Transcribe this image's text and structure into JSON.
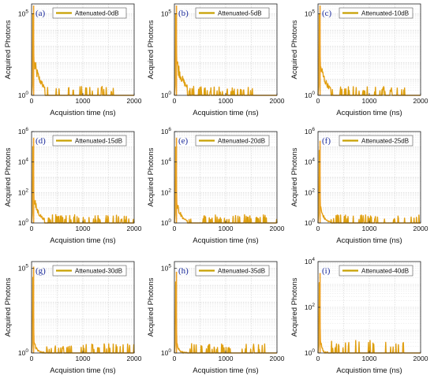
{
  "chart_data": {
    "type": "line",
    "layout": "3x3 grid",
    "line_color": "#c8a000",
    "fill_color": "#f0a020",
    "x_ticks": [
      "0",
      "1000",
      "2000"
    ],
    "xlim": [
      0,
      2000
    ],
    "x_label": "Acquistion time (ns)",
    "y_label": "Acquired Photons",
    "y_scale": "log",
    "grid": true,
    "legend_placement": "top",
    "panels": [
      {
        "letter": "(a)",
        "legend": "Attenuated-0dB",
        "y_ticks": [
          {
            "base": "10",
            "exp": "5"
          },
          {
            "base": "10",
            "exp": "0"
          }
        ],
        "ylim_log": [
          0,
          5.6
        ],
        "peak_log": 5.5,
        "tail_decay_ns": 150,
        "tail_start_log": 1.9,
        "noise_end_ns": 1600
      },
      {
        "letter": "(b)",
        "legend": "Attenuated-5dB",
        "y_ticks": [
          {
            "base": "10",
            "exp": "5"
          },
          {
            "base": "10",
            "exp": "0"
          }
        ],
        "ylim_log": [
          0,
          5.6
        ],
        "peak_log": 5.5,
        "tail_decay_ns": 150,
        "tail_start_log": 1.9,
        "noise_end_ns": 1600
      },
      {
        "letter": "(c)",
        "legend": "Attenuated-10dB",
        "y_ticks": [
          {
            "base": "10",
            "exp": "5"
          },
          {
            "base": "10",
            "exp": "0"
          }
        ],
        "ylim_log": [
          0,
          5.6
        ],
        "peak_log": 5.5,
        "tail_decay_ns": 130,
        "tail_start_log": 1.7,
        "noise_end_ns": 1700
      },
      {
        "letter": "(d)",
        "legend": "Attenuated-15dB",
        "y_ticks": [
          {
            "base": "10",
            "exp": "6"
          },
          {
            "base": "10",
            "exp": "4"
          },
          {
            "base": "10",
            "exp": "2"
          },
          {
            "base": "10",
            "exp": "0"
          }
        ],
        "ylim_log": [
          0,
          6
        ],
        "peak_log": 5.6,
        "tail_decay_ns": 110,
        "tail_start_log": 1.4,
        "noise_end_ns": 2000
      },
      {
        "letter": "(e)",
        "legend": "Attenuated-20dB",
        "y_ticks": [
          {
            "base": "10",
            "exp": "6"
          },
          {
            "base": "10",
            "exp": "4"
          },
          {
            "base": "10",
            "exp": "2"
          },
          {
            "base": "10",
            "exp": "0"
          }
        ],
        "ylim_log": [
          0,
          6
        ],
        "peak_log": 5.6,
        "tail_decay_ns": 90,
        "tail_start_log": 1.2,
        "noise_end_ns": 2000
      },
      {
        "letter": "(f)",
        "legend": "Attenuated-25dB",
        "y_ticks": [
          {
            "base": "10",
            "exp": "6"
          },
          {
            "base": "10",
            "exp": "4"
          },
          {
            "base": "10",
            "exp": "2"
          },
          {
            "base": "10",
            "exp": "0"
          }
        ],
        "ylim_log": [
          0,
          6
        ],
        "peak_log": 5.4,
        "tail_decay_ns": 70,
        "tail_start_log": 0.9,
        "noise_end_ns": 2000
      },
      {
        "letter": "(g)",
        "legend": "Attenuated-30dB",
        "y_ticks": [
          {
            "base": "10",
            "exp": "5"
          },
          {
            "base": "10",
            "exp": "0"
          }
        ],
        "ylim_log": [
          0,
          5.4
        ],
        "peak_log": 5.1,
        "tail_decay_ns": 50,
        "tail_start_log": 0.6,
        "noise_end_ns": 2000
      },
      {
        "letter": "(h)",
        "legend": "Attenuated-35dB",
        "y_ticks": [
          {
            "base": "10",
            "exp": "5"
          },
          {
            "base": "10",
            "exp": "0"
          }
        ],
        "ylim_log": [
          0,
          5.4
        ],
        "peak_log": 4.8,
        "tail_decay_ns": 40,
        "tail_start_log": 0.5,
        "noise_end_ns": 1900
      },
      {
        "letter": "(i)",
        "legend": "Attenuated-40dB",
        "y_ticks": [
          {
            "base": "10",
            "exp": "4"
          },
          {
            "base": "10",
            "exp": "2"
          },
          {
            "base": "10",
            "exp": "0"
          }
        ],
        "ylim_log": [
          0,
          4
        ],
        "peak_log": 3.5,
        "tail_decay_ns": 30,
        "tail_start_log": 0.5,
        "noise_end_ns": 1700
      }
    ]
  }
}
